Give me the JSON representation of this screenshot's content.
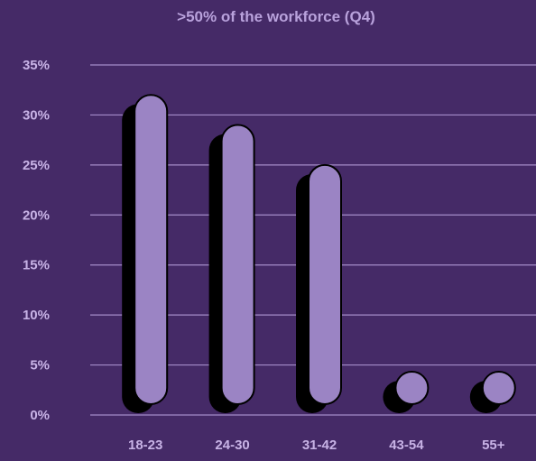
{
  "chart_data": {
    "type": "bar",
    "title": ">50% of the workforce (Q4)",
    "categories": [
      "18-23",
      "24-30",
      "31-42",
      "43-54",
      "55+"
    ],
    "values": [
      32,
      29,
      25,
      3.5,
      2
    ],
    "ylim": [
      0,
      35
    ],
    "yticks": [
      0,
      5,
      10,
      15,
      20,
      25,
      30,
      35
    ],
    "ytick_labels": [
      "0%",
      "5%",
      "10%",
      "15%",
      "20%",
      "25%",
      "30%",
      "35%"
    ],
    "grid": true,
    "colors": {
      "background": "#452a67",
      "bar_fill": "#9b84c4",
      "bar_shadow": "#000000",
      "bar_outline": "#000000",
      "gridline": "#a58cc9",
      "text": "#c8b3e6"
    }
  }
}
